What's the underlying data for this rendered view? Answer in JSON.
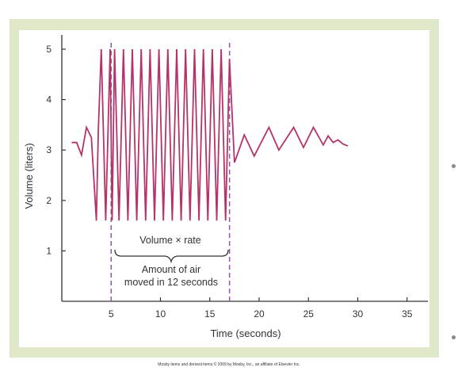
{
  "chart_data": {
    "type": "line",
    "title": "",
    "xlabel": "Time (seconds)",
    "ylabel": "Volume (liters)",
    "xlim": [
      0,
      36
    ],
    "ylim": [
      0,
      5.2
    ],
    "xticks": [
      5,
      10,
      15,
      20,
      25,
      30,
      35
    ],
    "yticks": [
      1,
      2,
      3,
      4,
      5
    ],
    "line_color": "#b5336a",
    "marker_color": "#8a5aa8",
    "series": [
      {
        "x": [
          1.0,
          1.5,
          2.0,
          2.5,
          3.0,
          3.5,
          3.7,
          4.0,
          4.45,
          4.9,
          5.1,
          5.35,
          5.8,
          6.25,
          6.7,
          7.15,
          7.6,
          8.05,
          8.5,
          8.95,
          9.4,
          9.85,
          10.3,
          10.75,
          11.2,
          11.65,
          12.1,
          12.55,
          13.0,
          13.45,
          13.9,
          14.35,
          14.8,
          15.25,
          15.7,
          16.15,
          16.6,
          17.0,
          17.5,
          18.5,
          19.5,
          21.0,
          22.0,
          23.5,
          24.5,
          25.5,
          26.5,
          27.0,
          27.5,
          28.0,
          28.5,
          29.0
        ],
        "y": [
          3.15,
          3.15,
          2.9,
          3.45,
          3.25,
          1.6,
          3.4,
          5.0,
          1.6,
          5.0,
          1.6,
          5.0,
          1.6,
          5.0,
          1.6,
          5.0,
          1.6,
          5.0,
          1.6,
          5.0,
          1.6,
          5.0,
          1.6,
          5.0,
          1.6,
          5.0,
          1.6,
          5.0,
          1.6,
          5.0,
          1.6,
          5.0,
          1.6,
          5.0,
          1.6,
          5.0,
          1.6,
          4.8,
          2.75,
          3.3,
          2.88,
          3.45,
          3.0,
          3.45,
          3.05,
          3.45,
          3.1,
          3.28,
          3.15,
          3.2,
          3.12,
          3.08
        ]
      }
    ],
    "markers": [
      {
        "x": 5,
        "style": "dashed"
      },
      {
        "x": 17,
        "style": "dashed"
      }
    ],
    "annotations": {
      "bracket_label": "Volume × rate",
      "bracket_sub_1": "Amount of air",
      "bracket_sub_2": "moved in 12 seconds"
    }
  },
  "credit": "Mosby items and derived items © 2009 by Mosby, Inc., an affiliate of Elsevier Inc.",
  "colors": {
    "frame": "#dfe8c8",
    "panel": "#ffffff",
    "axis": "#333333"
  }
}
